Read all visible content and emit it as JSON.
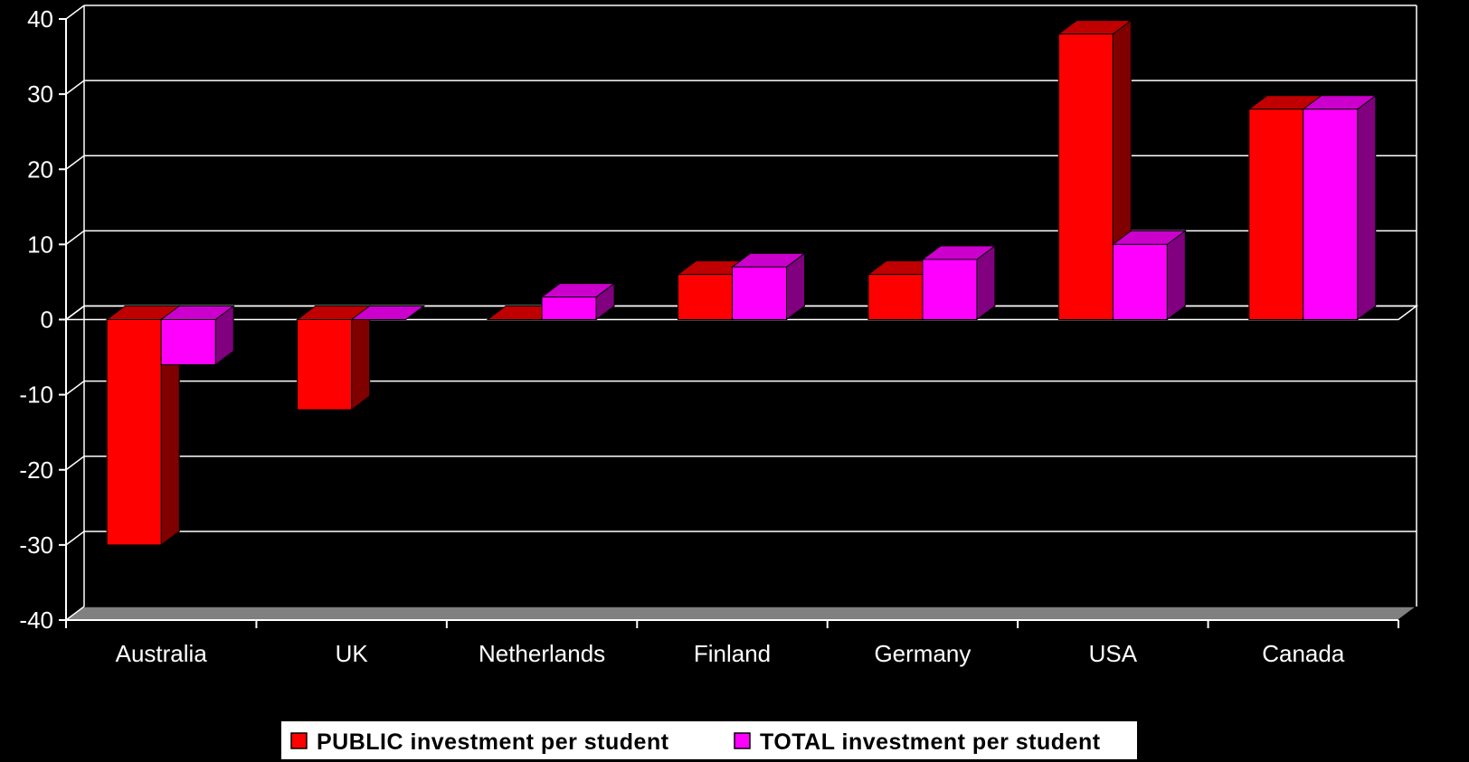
{
  "chart_data": {
    "type": "bar",
    "style": "3d-clustered-column",
    "categories": [
      "Australia",
      "UK",
      "Netherlands",
      "Finland",
      "Germany",
      "USA",
      "Canada"
    ],
    "series": [
      {
        "name": "PUBLIC investment per student",
        "values": [
          -30,
          -12,
          0,
          6,
          6,
          38,
          28
        ],
        "color": "#ff0000",
        "side_color": "#800000",
        "top_color": "#c00000"
      },
      {
        "name": "TOTAL investment per student",
        "values": [
          -6,
          0,
          3,
          7,
          8,
          10,
          28
        ],
        "color": "#ff00ff",
        "side_color": "#800080",
        "top_color": "#cc00cc"
      }
    ],
    "ylim": [
      -40,
      40
    ],
    "yticks": [
      -40,
      -30,
      -20,
      -10,
      0,
      10,
      20,
      30,
      40
    ],
    "title": "",
    "xlabel": "",
    "ylabel": "",
    "grid": true,
    "legend_position": "bottom",
    "background": "#000000",
    "floor_color": "#808080",
    "gridline_color": "#ffffff"
  }
}
